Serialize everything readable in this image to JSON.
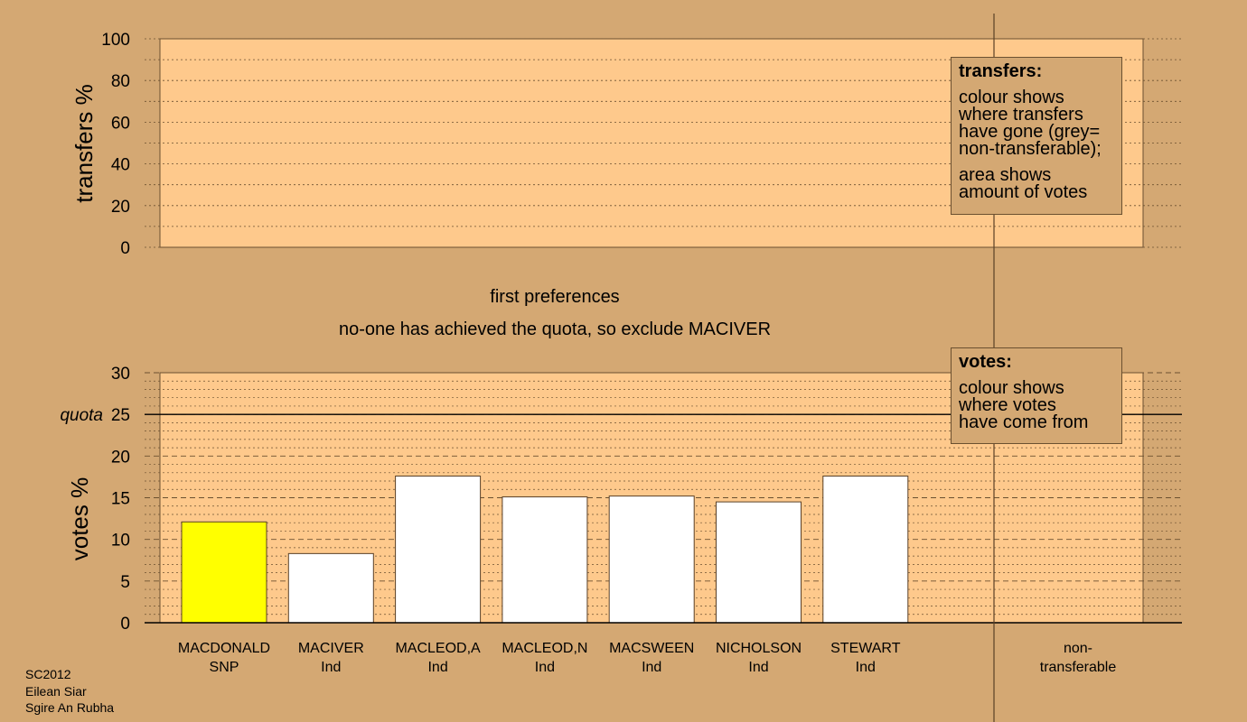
{
  "chart_data": [
    {
      "type": "bar",
      "panel": "transfers",
      "ylabel": "transfers %",
      "ylim": [
        0,
        100
      ],
      "yticks": [
        "0",
        "20",
        "40",
        "60",
        "80",
        "100"
      ],
      "series": []
    },
    {
      "type": "bar",
      "panel": "votes",
      "ylabel": "votes %",
      "ylim": [
        0,
        30
      ],
      "yticks": [
        "0",
        "5",
        "10",
        "15",
        "20",
        "25",
        "30"
      ],
      "quota": 25,
      "quota_label": "quota",
      "categories": [
        {
          "name": "MACDONALD",
          "party": "SNP"
        },
        {
          "name": "MACIVER",
          "party": "Ind"
        },
        {
          "name": "MACLEOD,A",
          "party": "Ind"
        },
        {
          "name": "MACLEOD,N",
          "party": "Ind"
        },
        {
          "name": "MACSWEEN",
          "party": "Ind"
        },
        {
          "name": "NICHOLSON",
          "party": "Ind"
        },
        {
          "name": "STEWART",
          "party": "Ind"
        }
      ],
      "values": [
        12.1,
        8.3,
        17.6,
        15.1,
        15.2,
        14.5,
        17.6
      ],
      "bar_colors": [
        "#ffff00",
        "#ffffff",
        "#ffffff",
        "#ffffff",
        "#ffffff",
        "#ffffff",
        "#ffffff"
      ],
      "nontransferable_label": [
        "non-",
        "transferable"
      ],
      "nontransferable_value": 0
    }
  ],
  "captions": {
    "stage": "first preferences",
    "message": "no-one has achieved the quota, so exclude MACIVER"
  },
  "legend_transfers": {
    "title": "transfers:",
    "line1": "colour shows",
    "line2": "where transfers",
    "line3": "have gone (grey=",
    "line4": "non-transferable);",
    "line5": "area shows",
    "line6": "amount of votes"
  },
  "legend_votes": {
    "title": "votes:",
    "line1": "colour shows",
    "line2": "where votes",
    "line3": "have come from"
  },
  "footer": {
    "line1": "SC2012",
    "line2": "Eilean Siar",
    "line3": "Sgire An Rubha"
  },
  "colors": {
    "background": "#d4a873",
    "plot_fill": "#fec98c",
    "snp": "#ffff00",
    "ind": "#ffffff"
  }
}
